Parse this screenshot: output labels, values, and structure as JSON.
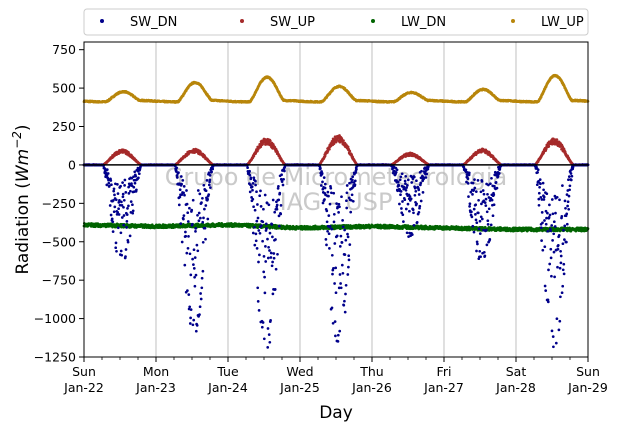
{
  "chart_data": {
    "type": "scatter",
    "xlabel": "Day",
    "ylabel": "Radiation (Wm^-2)",
    "ylabel_prefix": "Radiation (",
    "ylabel_unit_base": "Wm",
    "ylabel_unit_exp": "−2",
    "ylabel_suffix": ")",
    "xlim": [
      "2022-01-22",
      "2022-01-29"
    ],
    "ylim": [
      -1250,
      800
    ],
    "yticks": [
      750,
      500,
      250,
      0,
      -250,
      -500,
      -750,
      -1000,
      -1250
    ],
    "ytick_labels": [
      "750",
      "500",
      "250",
      "0",
      "−250",
      "−500",
      "−750",
      "−1000",
      "−1250"
    ],
    "xtick_labels": [
      {
        "date": "2022-01-22",
        "day": "Sun",
        "date_label": "Jan-22"
      },
      {
        "date": "2022-01-23",
        "day": "Mon",
        "date_label": "Jan-23"
      },
      {
        "date": "2022-01-24",
        "day": "Tue",
        "date_label": "Jan-24"
      },
      {
        "date": "2022-01-25",
        "day": "Wed",
        "date_label": "Jan-25"
      },
      {
        "date": "2022-01-26",
        "day": "Thu",
        "date_label": "Jan-26"
      },
      {
        "date": "2022-01-27",
        "day": "Fri",
        "date_label": "Jan-27"
      },
      {
        "date": "2022-01-28",
        "day": "Sat",
        "date_label": "Jan-28"
      },
      {
        "date": "2022-01-29",
        "day": "Sun",
        "date_label": "Jan-29"
      }
    ],
    "grid": "vertical",
    "legend_position": "top",
    "watermark": [
      "Grupo de Micrometeorologia",
      "IAG - USP"
    ],
    "series": [
      {
        "name": "SW_DN",
        "color": "#00008b",
        "night_value": 0,
        "daily_peaks": [
          {
            "date": "2022-01-22",
            "peak": -660
          },
          {
            "date": "2022-01-23",
            "peak": -1130
          },
          {
            "date": "2022-01-24",
            "peak": -1230
          },
          {
            "date": "2022-01-25",
            "peak": -1220
          },
          {
            "date": "2022-01-26",
            "peak": -480
          },
          {
            "date": "2022-01-27",
            "peak": -660
          },
          {
            "date": "2022-01-28",
            "peak": -1200
          }
        ]
      },
      {
        "name": "SW_UP",
        "color": "#a52a2a",
        "night_value": 0,
        "daily_peaks": [
          {
            "date": "2022-01-22",
            "peak": 95
          },
          {
            "date": "2022-01-23",
            "peak": 100
          },
          {
            "date": "2022-01-24",
            "peak": 165
          },
          {
            "date": "2022-01-25",
            "peak": 185
          },
          {
            "date": "2022-01-26",
            "peak": 75
          },
          {
            "date": "2022-01-27",
            "peak": 100
          },
          {
            "date": "2022-01-28",
            "peak": 165
          }
        ]
      },
      {
        "name": "LW_DN",
        "color": "#006400",
        "baseline": [
          {
            "date": "2022-01-22",
            "value": -390
          },
          {
            "date": "2022-01-23",
            "value": -400
          },
          {
            "date": "2022-01-24",
            "value": -390
          },
          {
            "date": "2022-01-25",
            "value": -410
          },
          {
            "date": "2022-01-26",
            "value": -400
          },
          {
            "date": "2022-01-27",
            "value": -410
          },
          {
            "date": "2022-01-28",
            "value": -420
          },
          {
            "date": "2022-01-29",
            "value": -420
          }
        ]
      },
      {
        "name": "LW_UP",
        "color": "#b8860b",
        "night_value": 415,
        "daily_peaks": [
          {
            "date": "2022-01-22",
            "peak": 475
          },
          {
            "date": "2022-01-23",
            "peak": 535
          },
          {
            "date": "2022-01-24",
            "peak": 570
          },
          {
            "date": "2022-01-25",
            "peak": 510
          },
          {
            "date": "2022-01-26",
            "peak": 470
          },
          {
            "date": "2022-01-27",
            "peak": 490
          },
          {
            "date": "2022-01-28",
            "peak": 580
          }
        ]
      }
    ]
  }
}
